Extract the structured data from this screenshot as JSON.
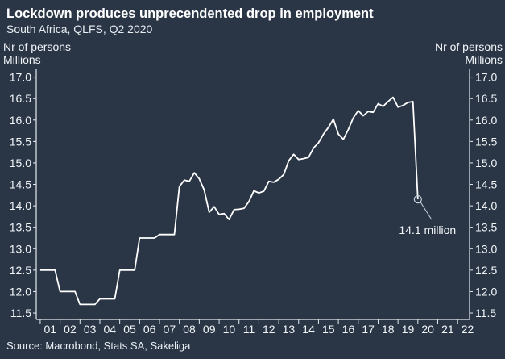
{
  "header": {
    "title": "Lockdown produces unprecendented drop in employment",
    "subtitle": "South Africa, QLFS, Q2 2020"
  },
  "footer": {
    "source": "Source: Macrobond, Stats SA, Sakeliga"
  },
  "colors": {
    "background": "#2a3646",
    "line": "#ffffff",
    "axis": "#e6ebf0"
  },
  "chart_data": {
    "type": "line",
    "title": "Lockdown produces unprecendented drop in employment",
    "subtitle": "South Africa, QLFS, Q2 2020",
    "ylabel_left": [
      "Nr of persons",
      "Millions"
    ],
    "ylabel_right": [
      "Nr of persons",
      "Millions"
    ],
    "xlabel": "",
    "x_tick_labels": [
      "01",
      "02",
      "03",
      "04",
      "05",
      "06",
      "07",
      "08",
      "09",
      "10",
      "11",
      "12",
      "13",
      "14",
      "15",
      "16",
      "17",
      "18",
      "19",
      "20",
      "21",
      "22"
    ],
    "y_ticks": [
      11.5,
      12.0,
      12.5,
      13.0,
      13.5,
      14.0,
      14.5,
      15.0,
      15.5,
      16.0,
      16.5,
      17.0
    ],
    "y_tick_labels": [
      "11.5",
      "12.0",
      "12.5",
      "13.0",
      "13.5",
      "14.0",
      "14.5",
      "15.0",
      "15.5",
      "16.0",
      "16.5",
      "17.0"
    ],
    "xlim": [
      2000.8,
      2022.6
    ],
    "ylim": [
      11.35,
      17.2
    ],
    "grid": false,
    "series": [
      {
        "x": [
          2001.0,
          2001.75,
          2002.0,
          2002.75,
          2003.0,
          2003.75,
          2004.0,
          2004.75,
          2005.0,
          2005.75,
          2006.0,
          2006.75,
          2007.0,
          2007.75,
          2008.0,
          2008.25,
          2008.5,
          2008.75,
          2009.0,
          2009.25,
          2009.5,
          2009.75,
          2010.0,
          2010.25,
          2010.5,
          2010.75,
          2011.0,
          2011.25,
          2011.5,
          2011.75,
          2012.0,
          2012.25,
          2012.5,
          2012.75,
          2013.0,
          2013.25,
          2013.5,
          2013.75,
          2014.0,
          2014.25,
          2014.5,
          2014.75,
          2015.0,
          2015.25,
          2015.5,
          2015.75,
          2016.0,
          2016.25,
          2016.5,
          2016.75,
          2017.0,
          2017.25,
          2017.5,
          2017.75,
          2018.0,
          2018.25,
          2018.5,
          2018.75,
          2019.0,
          2019.25,
          2019.5,
          2019.75,
          2020.0
        ],
        "values": [
          12.5,
          12.5,
          12.0,
          12.0,
          11.7,
          11.7,
          11.83,
          11.83,
          12.5,
          12.5,
          13.25,
          13.25,
          13.33,
          13.33,
          14.45,
          14.6,
          14.57,
          14.77,
          14.63,
          14.37,
          13.85,
          13.98,
          13.8,
          13.82,
          13.68,
          13.91,
          13.92,
          13.94,
          14.1,
          14.35,
          14.3,
          14.34,
          14.57,
          14.55,
          14.62,
          14.73,
          15.05,
          15.2,
          15.08,
          15.1,
          15.13,
          15.35,
          15.47,
          15.67,
          15.83,
          16.02,
          15.67,
          15.55,
          15.78,
          16.05,
          16.22,
          16.1,
          16.2,
          16.18,
          16.38,
          16.32,
          16.43,
          16.53,
          16.3,
          16.34,
          16.41,
          16.43,
          14.15
        ]
      }
    ],
    "annotations": [
      {
        "text": "14.1 million",
        "x": 2020.0,
        "y": 14.15
      }
    ]
  }
}
